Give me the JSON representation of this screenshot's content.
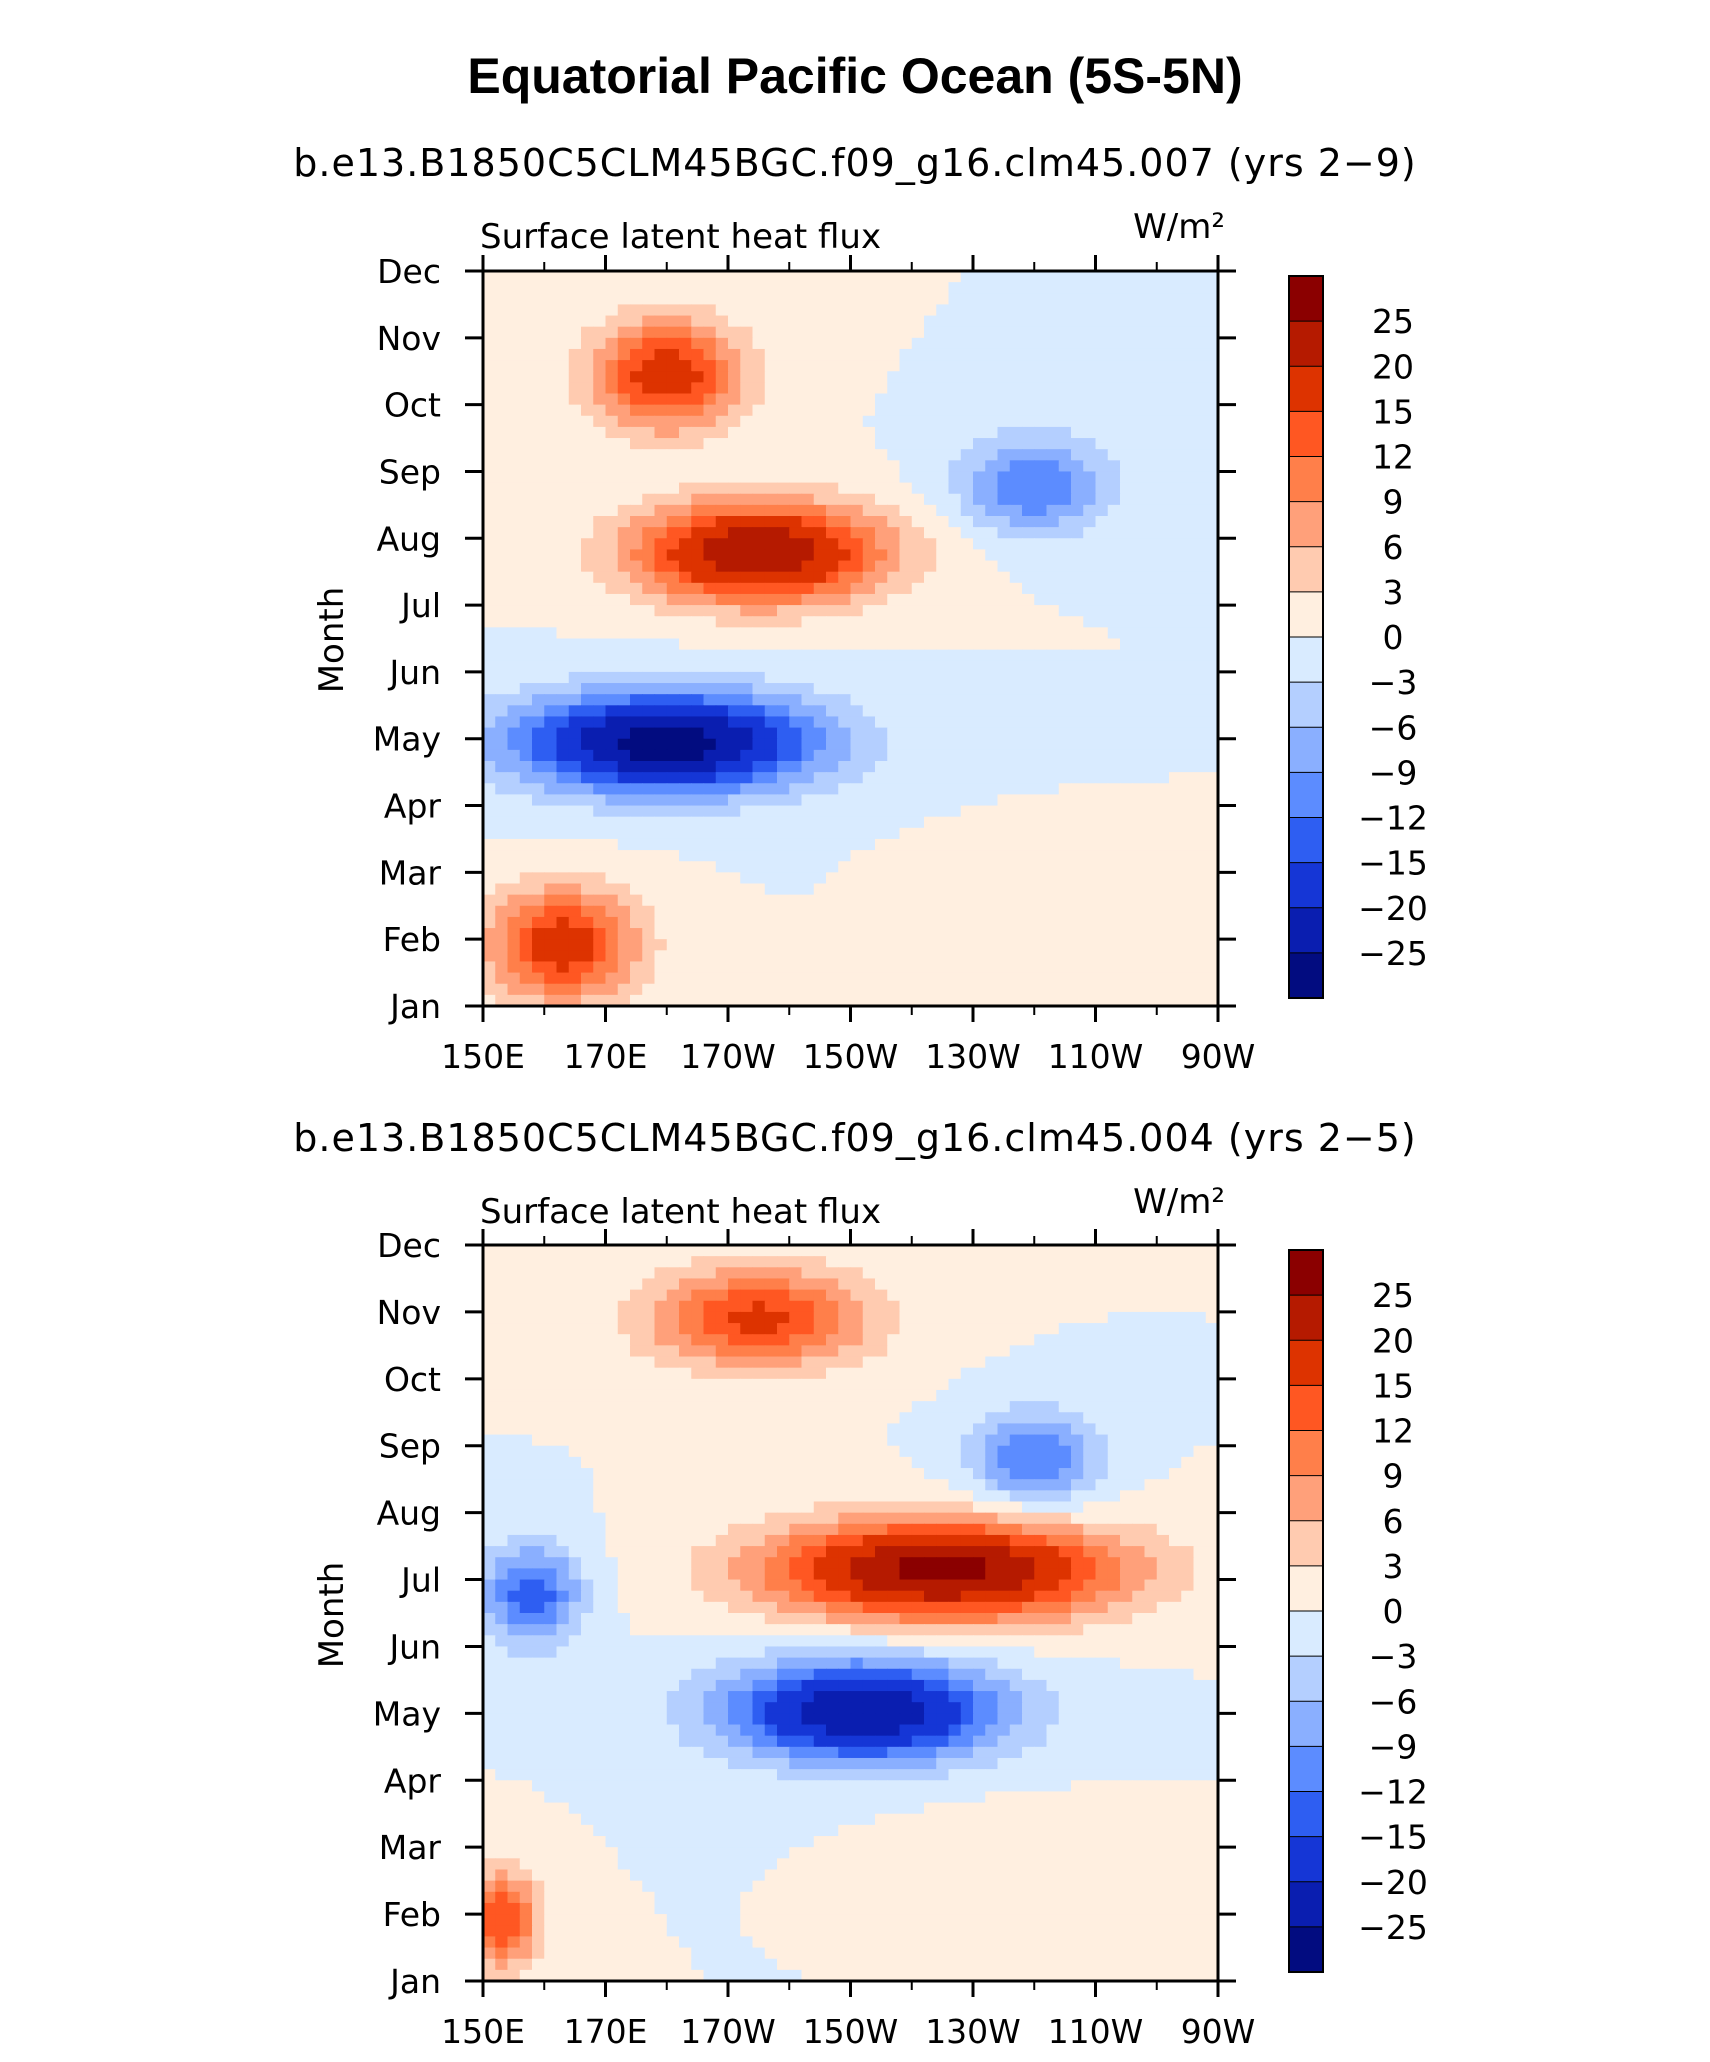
{
  "title": "Equatorial Pacific Ocean (5S-5N)",
  "colorbar": {
    "levels": [
      "25",
      "20",
      "15",
      "12",
      "9",
      "6",
      "3",
      "0",
      "−3",
      "−6",
      "−9",
      "−12",
      "−15",
      "−20",
      "−25"
    ],
    "colors": [
      "#8B0000",
      "#B51A00",
      "#DD3300",
      "#FF5722",
      "#FF7F4A",
      "#FFA07A",
      "#FFCBB0",
      "#FFEFE0",
      "#D9EBFF",
      "#B4CFFF",
      "#8AAFFF",
      "#5C8CFF",
      "#2E5EF2",
      "#1536D6",
      "#0A1EB0",
      "#020C80"
    ]
  },
  "chart_data": [
    {
      "type": "heatmap",
      "subtitle": "b.e13.B1850C5CLM45BGC.f09_g16.clm45.007 (yrs 2−9)",
      "variable": "Surface latent heat flux",
      "units": "W/m²",
      "ylabel": "Month",
      "xlabel": "",
      "x_tick_labels": [
        "150E",
        "170E",
        "170W",
        "150W",
        "130W",
        "110W",
        "90W"
      ],
      "x_range": [
        150,
        270
      ],
      "y_tick_labels": [
        "Jan",
        "Feb",
        "Mar",
        "Apr",
        "May",
        "Jun",
        "Jul",
        "Aug",
        "Sep",
        "Oct",
        "Nov",
        "Dec"
      ],
      "features": [
        {
          "lon": 163,
          "month": 1.5,
          "value": 18,
          "spread_lon": 12,
          "spread_month": 0.9
        },
        {
          "lon": 180,
          "month": 4.8,
          "value": -28,
          "spread_lon": 24,
          "spread_month": 0.8
        },
        {
          "lon": 240,
          "month": 2.9,
          "value": 2,
          "spread_lon": 14,
          "spread_month": 0.5
        },
        {
          "lon": 195,
          "month": 7.9,
          "value": 25,
          "spread_lon": 20,
          "spread_month": 0.8
        },
        {
          "lon": 240,
          "month": 9.0,
          "value": -12,
          "spread_lon": 12,
          "spread_month": 0.8
        },
        {
          "lon": 180,
          "month": 10.8,
          "value": 18,
          "spread_lon": 12,
          "spread_month": 0.9
        }
      ]
    },
    {
      "type": "heatmap",
      "subtitle": "b.e13.B1850C5CLM45BGC.f09_g16.clm45.004 (yrs 2−5)",
      "variable": "Surface latent heat flux",
      "units": "W/m²",
      "ylabel": "Month",
      "xlabel": "",
      "x_tick_labels": [
        "150E",
        "170E",
        "170W",
        "150W",
        "130W",
        "110W",
        "90W"
      ],
      "x_range": [
        150,
        270
      ],
      "y_tick_labels": [
        "Jan",
        "Feb",
        "Mar",
        "Apr",
        "May",
        "Jun",
        "Jul",
        "Aug",
        "Sep",
        "Oct",
        "Nov",
        "Dec"
      ],
      "features": [
        {
          "lon": 153,
          "month": 1.5,
          "value": 15,
          "spread_lon": 6,
          "spread_month": 0.8
        },
        {
          "lon": 212,
          "month": 4.9,
          "value": -25,
          "spread_lon": 22,
          "spread_month": 0.8
        },
        {
          "lon": 240,
          "month": 2.9,
          "value": 3,
          "spread_lon": 16,
          "spread_month": 0.5
        },
        {
          "lon": 225,
          "month": 7.2,
          "value": 27,
          "spread_lon": 28,
          "spread_month": 0.8
        },
        {
          "lon": 240,
          "month": 9.0,
          "value": -12,
          "spread_lon": 10,
          "spread_month": 0.8
        },
        {
          "lon": 195,
          "month": 11.3,
          "value": 16,
          "spread_lon": 18,
          "spread_month": 0.8
        },
        {
          "lon": 158,
          "month": 6.8,
          "value": -14,
          "spread_lon": 8,
          "spread_month": 0.8
        }
      ]
    }
  ]
}
